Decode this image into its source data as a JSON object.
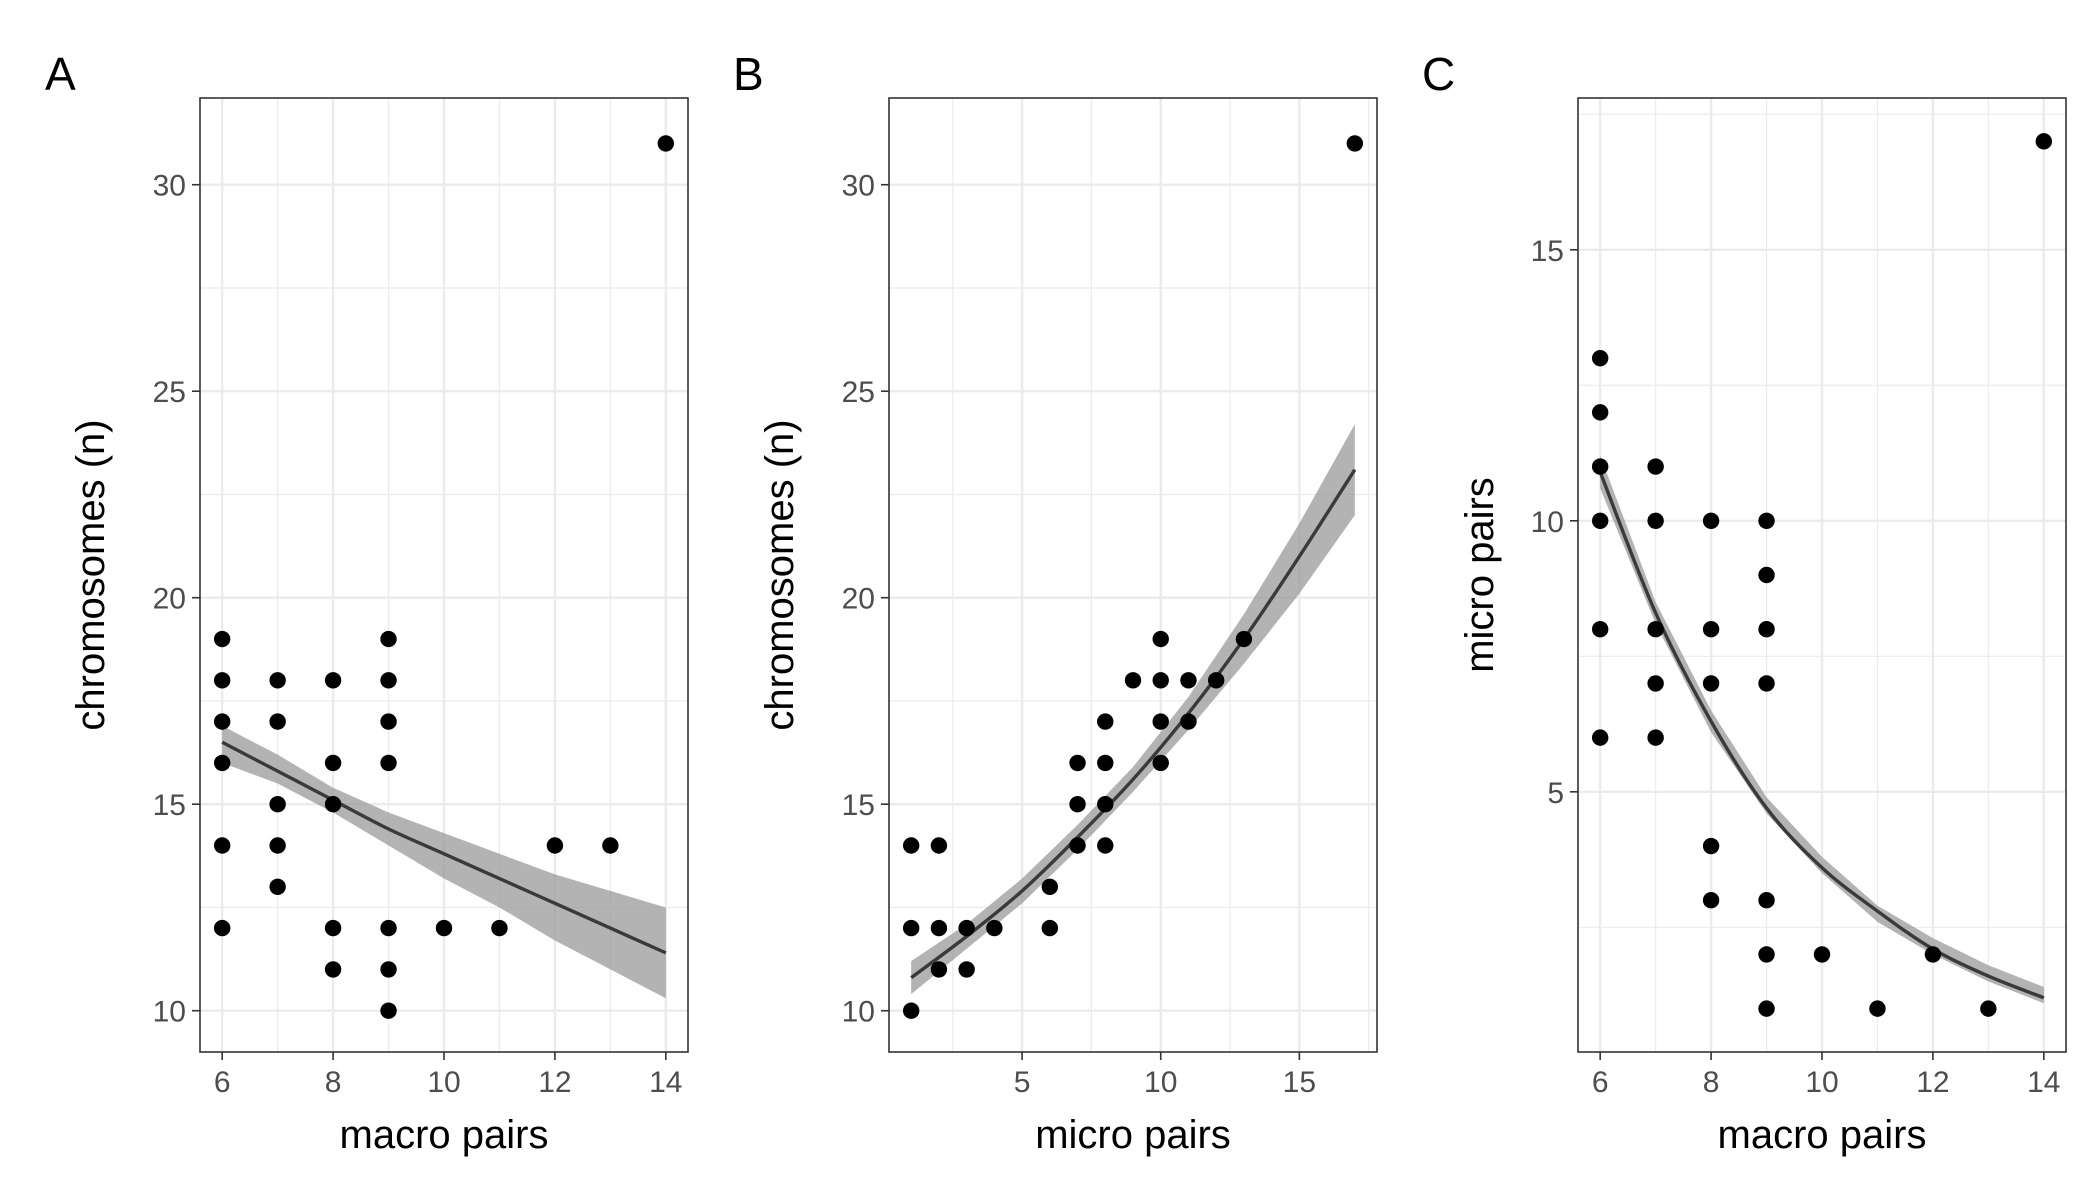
{
  "chart_data": [
    {
      "type": "scatter",
      "panel_label": "A",
      "xlabel": "macro pairs",
      "ylabel": "chromosomes (n)",
      "xlim": [
        5.6,
        14.4
      ],
      "ylim": [
        9.0,
        32.1
      ],
      "xticks": [
        6,
        8,
        10,
        12,
        14
      ],
      "xtick_labels": [
        "6",
        "8",
        "10",
        "12",
        "14"
      ],
      "yticks": [
        10,
        15,
        20,
        25,
        30
      ],
      "ytick_labels": [
        "10",
        "15",
        "20",
        "25",
        "30"
      ],
      "grid": true,
      "points": [
        [
          6,
          19
        ],
        [
          6,
          18
        ],
        [
          6,
          17
        ],
        [
          6,
          16
        ],
        [
          6,
          14
        ],
        [
          6,
          12
        ],
        [
          7,
          18
        ],
        [
          7,
          17
        ],
        [
          7,
          15
        ],
        [
          7,
          14
        ],
        [
          7,
          13
        ],
        [
          8,
          18
        ],
        [
          8,
          16
        ],
        [
          8,
          15
        ],
        [
          8,
          12
        ],
        [
          8,
          11
        ],
        [
          9,
          19
        ],
        [
          9,
          18
        ],
        [
          9,
          17
        ],
        [
          9,
          16
        ],
        [
          9,
          12
        ],
        [
          9,
          11
        ],
        [
          9,
          10
        ],
        [
          10,
          12
        ],
        [
          11,
          12
        ],
        [
          12,
          14
        ],
        [
          13,
          14
        ],
        [
          14,
          31
        ]
      ],
      "fit": {
        "x": [
          6,
          7,
          8,
          9,
          10,
          11,
          12,
          13,
          14
        ],
        "y": [
          16.5,
          15.8,
          15.1,
          14.4,
          13.8,
          13.2,
          12.6,
          12.0,
          11.4
        ],
        "lower": [
          16.0,
          15.5,
          14.8,
          14.0,
          13.2,
          12.5,
          11.7,
          11.0,
          10.3
        ],
        "upper": [
          16.9,
          16.2,
          15.4,
          14.8,
          14.3,
          13.8,
          13.3,
          12.9,
          12.5
        ]
      }
    },
    {
      "type": "scatter",
      "panel_label": "B",
      "xlabel": "micro pairs",
      "ylabel": "chromosomes (n)",
      "xlim": [
        0.2,
        17.8
      ],
      "ylim": [
        9.0,
        32.1
      ],
      "xticks": [
        5,
        10,
        15
      ],
      "xtick_labels": [
        "5",
        "10",
        "15"
      ],
      "yticks": [
        10,
        15,
        20,
        25,
        30
      ],
      "ytick_labels": [
        "10",
        "15",
        "20",
        "25",
        "30"
      ],
      "grid": true,
      "points": [
        [
          1,
          14
        ],
        [
          1,
          12
        ],
        [
          1,
          10
        ],
        [
          2,
          14
        ],
        [
          2,
          12
        ],
        [
          2,
          11
        ],
        [
          3,
          12
        ],
        [
          3,
          11
        ],
        [
          4,
          12
        ],
        [
          6,
          13
        ],
        [
          6,
          12
        ],
        [
          7,
          16
        ],
        [
          7,
          15
        ],
        [
          7,
          14
        ],
        [
          8,
          17
        ],
        [
          8,
          16
        ],
        [
          8,
          15
        ],
        [
          8,
          14
        ],
        [
          9,
          18
        ],
        [
          10,
          19
        ],
        [
          10,
          18
        ],
        [
          10,
          17
        ],
        [
          10,
          16
        ],
        [
          11,
          18
        ],
        [
          11,
          17
        ],
        [
          12,
          18
        ],
        [
          13,
          19
        ],
        [
          17,
          31
        ]
      ],
      "fit": {
        "x": [
          1,
          3,
          5,
          7,
          9,
          11,
          13,
          15,
          17
        ],
        "y": [
          10.8,
          11.8,
          12.9,
          14.2,
          15.6,
          17.2,
          19.0,
          21.0,
          23.1
        ],
        "lower": [
          10.4,
          11.5,
          12.6,
          13.9,
          15.3,
          16.8,
          18.4,
          20.1,
          22.0
        ],
        "upper": [
          11.2,
          12.1,
          13.2,
          14.5,
          15.9,
          17.6,
          19.6,
          21.8,
          24.2
        ]
      }
    },
    {
      "type": "scatter",
      "panel_label": "C",
      "xlabel": "macro pairs",
      "ylabel": "micro pairs",
      "xlim": [
        5.6,
        14.4
      ],
      "ylim": [
        0.2,
        17.8
      ],
      "xticks": [
        6,
        8,
        10,
        12,
        14
      ],
      "xtick_labels": [
        "6",
        "8",
        "10",
        "12",
        "14"
      ],
      "yticks": [
        5,
        10,
        15
      ],
      "ytick_labels": [
        "5",
        "10",
        "15"
      ],
      "grid": true,
      "points": [
        [
          6,
          13
        ],
        [
          6,
          12
        ],
        [
          6,
          11
        ],
        [
          6,
          10
        ],
        [
          6,
          8
        ],
        [
          6,
          6
        ],
        [
          7,
          11
        ],
        [
          7,
          10
        ],
        [
          7,
          8
        ],
        [
          7,
          7
        ],
        [
          7,
          6
        ],
        [
          8,
          10
        ],
        [
          8,
          8
        ],
        [
          8,
          7
        ],
        [
          8,
          4
        ],
        [
          8,
          3
        ],
        [
          9,
          10
        ],
        [
          9,
          9
        ],
        [
          9,
          8
        ],
        [
          9,
          7
        ],
        [
          9,
          3
        ],
        [
          9,
          2
        ],
        [
          9,
          1
        ],
        [
          10,
          2
        ],
        [
          11,
          1
        ],
        [
          12,
          2
        ],
        [
          13,
          1
        ],
        [
          14,
          17
        ]
      ],
      "fit": {
        "x": [
          6,
          7,
          8,
          9,
          10,
          11,
          12,
          13,
          14
        ],
        "y": [
          10.9,
          8.3,
          6.3,
          4.7,
          3.6,
          2.8,
          2.1,
          1.6,
          1.2
        ],
        "lower": [
          10.6,
          8.1,
          6.1,
          4.6,
          3.5,
          2.6,
          2.0,
          1.5,
          1.1
        ],
        "upper": [
          11.2,
          8.5,
          6.5,
          4.9,
          3.8,
          2.9,
          2.3,
          1.8,
          1.4
        ]
      }
    }
  ]
}
